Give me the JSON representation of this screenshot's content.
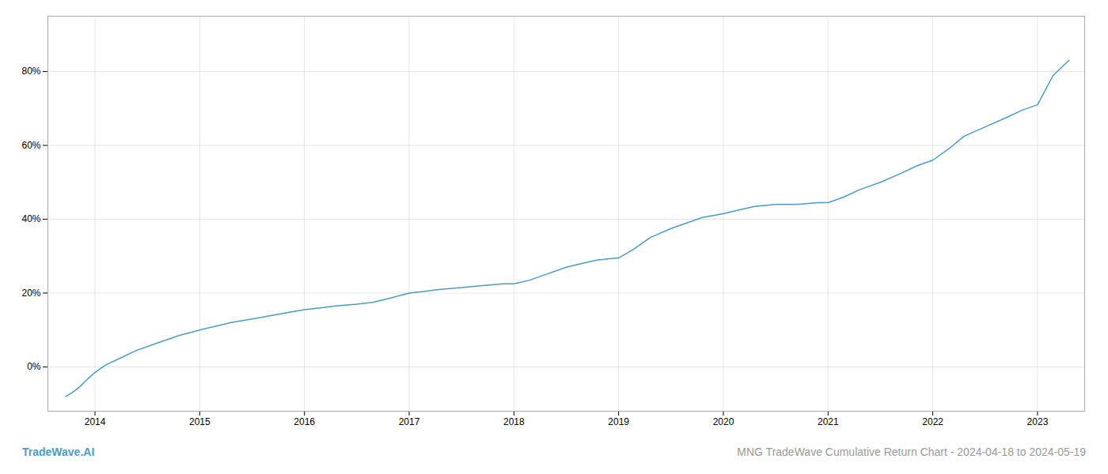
{
  "chart_data": {
    "type": "line",
    "title": "MNG TradeWave Cumulative Return Chart - 2024-04-18 to 2024-05-19",
    "annotations": [
      "TradeWave.AI"
    ],
    "color": "#4a9cc7",
    "x": [
      2013.72,
      2013.78,
      2013.85,
      2013.92,
      2014.0,
      2014.1,
      2014.25,
      2014.4,
      2014.6,
      2014.8,
      2015.0,
      2015.15,
      2015.3,
      2015.5,
      2015.7,
      2015.9,
      2016.0,
      2016.15,
      2016.3,
      2016.5,
      2016.65,
      2016.8,
      2017.0,
      2017.15,
      2017.3,
      2017.5,
      2017.7,
      2017.9,
      2018.0,
      2018.15,
      2018.3,
      2018.5,
      2018.65,
      2018.8,
      2019.0,
      2019.15,
      2019.3,
      2019.5,
      2019.65,
      2019.8,
      2020.0,
      2020.15,
      2020.3,
      2020.5,
      2020.7,
      2020.9,
      2021.0,
      2021.15,
      2021.3,
      2021.5,
      2021.7,
      2021.85,
      2022.0,
      2022.15,
      2022.3,
      2022.5,
      2022.7,
      2022.85,
      2023.0,
      2023.15,
      2023.3
    ],
    "values": [
      -8.0,
      -7.0,
      -5.5,
      -3.5,
      -1.5,
      0.5,
      2.5,
      4.5,
      6.5,
      8.5,
      10.0,
      11.0,
      12.0,
      13.0,
      14.0,
      15.0,
      15.5,
      16.0,
      16.5,
      17.0,
      17.5,
      18.5,
      20.0,
      20.5,
      21.0,
      21.5,
      22.0,
      22.5,
      22.5,
      23.5,
      25.0,
      27.0,
      28.0,
      29.0,
      29.5,
      32.0,
      35.0,
      37.5,
      39.0,
      40.5,
      41.5,
      42.5,
      43.5,
      44.0,
      44.0,
      44.5,
      44.5,
      46.0,
      48.0,
      50.0,
      52.5,
      54.5,
      56.0,
      59.0,
      62.5,
      65.0,
      67.5,
      69.5,
      71.0,
      79.0,
      83.0
    ],
    "xlim": [
      2013.55,
      2023.45
    ],
    "ylim": [
      -12.0,
      95.0
    ],
    "xticks": [
      2014,
      2015,
      2016,
      2017,
      2018,
      2019,
      2020,
      2021,
      2022,
      2023
    ],
    "yticks": [
      {
        "value": 0,
        "label": "0%"
      },
      {
        "value": 20,
        "label": "20%"
      },
      {
        "value": 40,
        "label": "40%"
      },
      {
        "value": 60,
        "label": "60%"
      },
      {
        "value": 80,
        "label": "80%"
      }
    ],
    "grid": true
  }
}
